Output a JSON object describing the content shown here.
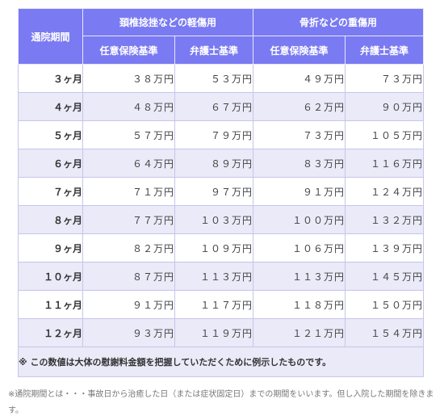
{
  "table": {
    "col_period": "通院期間",
    "group_light": "頚椎捻挫などの軽傷用",
    "group_heavy": "骨折などの重傷用",
    "sub_insurance": "任意保険基準",
    "sub_lawyer": "弁護士基準",
    "rows": [
      {
        "period": "３ヶ月",
        "light_ins": "３８万円",
        "light_law": "５３万円",
        "heavy_ins": "４９万円",
        "heavy_law": "７３万円"
      },
      {
        "period": "４ヶ月",
        "light_ins": "４８万円",
        "light_law": "６７万円",
        "heavy_ins": "６２万円",
        "heavy_law": "９０万円"
      },
      {
        "period": "５ヶ月",
        "light_ins": "５７万円",
        "light_law": "７９万円",
        "heavy_ins": "７３万円",
        "heavy_law": "１０５万円"
      },
      {
        "period": "６ヶ月",
        "light_ins": "６４万円",
        "light_law": "８９万円",
        "heavy_ins": "８３万円",
        "heavy_law": "１１６万円"
      },
      {
        "period": "７ヶ月",
        "light_ins": "７１万円",
        "light_law": "９７万円",
        "heavy_ins": "９１万円",
        "heavy_law": "１２４万円"
      },
      {
        "period": "８ヶ月",
        "light_ins": "７７万円",
        "light_law": "１０３万円",
        "heavy_ins": "１００万円",
        "heavy_law": "１３２万円"
      },
      {
        "period": "９ヶ月",
        "light_ins": "８２万円",
        "light_law": "１０９万円",
        "heavy_ins": "１０６万円",
        "heavy_law": "１３９万円"
      },
      {
        "period": "１０ヶ月",
        "light_ins": "８７万円",
        "light_law": "１１３万円",
        "heavy_ins": "１１３万円",
        "heavy_law": "１４５万円"
      },
      {
        "period": "１１ヶ月",
        "light_ins": "９１万円",
        "light_law": "１１７万円",
        "heavy_ins": "１１８万円",
        "heavy_law": "１５０万円"
      },
      {
        "period": "１２ヶ月",
        "light_ins": "９３万円",
        "light_law": "１１９万円",
        "heavy_ins": "１２１万円",
        "heavy_law": "１５４万円"
      }
    ],
    "note": "※ この数値は大体の慰謝料金額を把握していただくために例示したものです。"
  },
  "footnote": "※通院期間とは・・・事故日から治癒した日（または症状固定日）までの期間をいいます。但し入院した期間を除きます。",
  "colors": {
    "header_bg": "#7a7af2",
    "stripe_bg": "#eaeaf8",
    "border": "#c5c5ec"
  }
}
